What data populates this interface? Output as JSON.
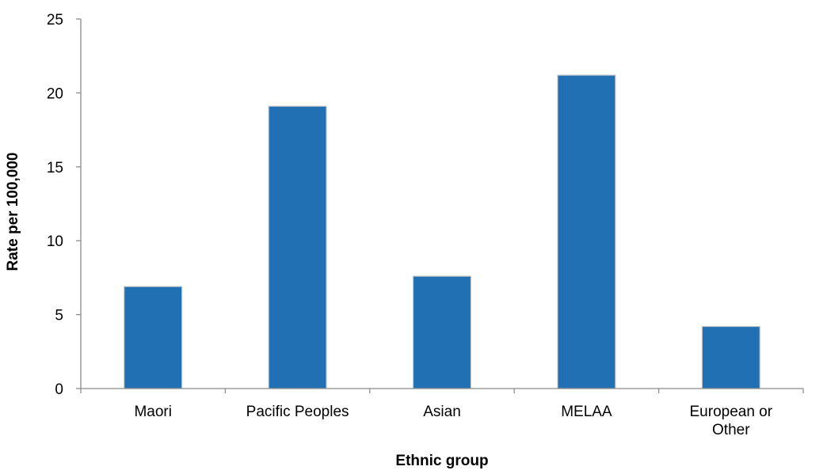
{
  "chart_data": {
    "type": "bar",
    "title": "",
    "xlabel": "Ethnic group",
    "ylabel": "Rate per 100,000",
    "categories": [
      "Maori",
      "Pacific Peoples",
      "Asian",
      "MELAA",
      "European or Other"
    ],
    "values": [
      6.9,
      19.1,
      7.6,
      21.2,
      4.2
    ],
    "ylim": [
      0,
      25
    ],
    "yticks": [
      0,
      5,
      10,
      15,
      20,
      25
    ],
    "grid": false,
    "legend": "none",
    "bar_color": "#2170b3",
    "bar_edge_color": "#c8c8c8",
    "axis_color": "#8c8c8c"
  }
}
